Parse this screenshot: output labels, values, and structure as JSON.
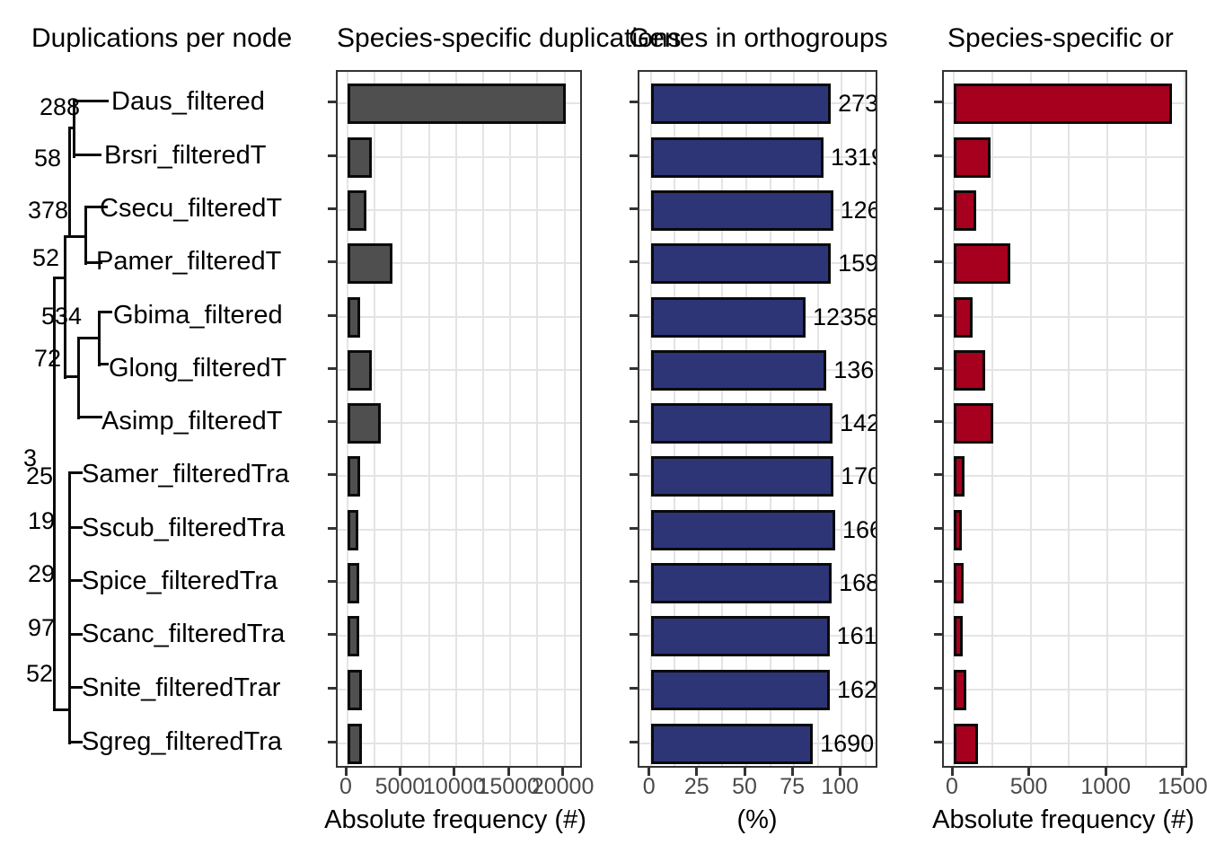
{
  "titles": [
    {
      "text": "Duplications per node"
    },
    {
      "text": "Species-specific duplications"
    },
    {
      "text": "Genes in orthogroups"
    },
    {
      "text": "Species-specific or"
    }
  ],
  "tree": {
    "tips": [
      {
        "label": "Daus_filtered"
      },
      {
        "label": "Brsri_filteredT"
      },
      {
        "label": "Csecu_filteredT"
      },
      {
        "label": "Pamer_filteredT"
      },
      {
        "label": "Gbima_filtered"
      },
      {
        "label": "Glong_filteredT"
      },
      {
        "label": "Asimp_filteredT"
      },
      {
        "label": "Samer_filteredTra"
      },
      {
        "label": "Sscub_filteredTra"
      },
      {
        "label": "Spice_filteredTra"
      },
      {
        "label": "Scanc_filteredTra"
      },
      {
        "label": "Snite_filteredTrar"
      },
      {
        "label": "Sgreg_filteredTra"
      }
    ],
    "node_labels": [
      "288",
      "58",
      "378",
      "52",
      "534",
      "72",
      "3",
      "25",
      "19",
      "29",
      "97",
      "52"
    ]
  },
  "chart_data": [
    {
      "type": "bar",
      "orientation": "horizontal",
      "title": "Species-specific duplications",
      "categories": [
        "Daus_filtered",
        "Brsri_filteredT",
        "Csecu_filteredT",
        "Pamer_filteredT",
        "Gbima_filtered",
        "Glong_filteredT",
        "Asimp_filteredT",
        "Samer_filteredTra",
        "Sscub_filteredTra",
        "Spice_filteredTra",
        "Scanc_filteredTra",
        "Snite_filteredTrar",
        "Sgreg_filteredTra"
      ],
      "values": [
        20100,
        2200,
        1700,
        4100,
        1200,
        2200,
        3100,
        1200,
        1000,
        1100,
        1100,
        1300,
        1300
      ],
      "xlabel": "Absolute frequency (#)",
      "xticks": [
        "0",
        "5000",
        "10000",
        "15000",
        "20000"
      ],
      "xlim": [
        0,
        22000
      ],
      "grid": "on",
      "bar_color": "#4f4f4f"
    },
    {
      "type": "bar",
      "orientation": "horizontal",
      "title": "Genes in orthogroups",
      "categories": [
        "Daus_filtered",
        "Brsri_filteredT",
        "Csecu_filteredT",
        "Pamer_filteredT",
        "Gbima_filtered",
        "Glong_filteredT",
        "Asimp_filteredT",
        "Samer_filteredTra",
        "Sscub_filteredTra",
        "Spice_filteredTra",
        "Scanc_filteredTra",
        "Snite_filteredTrar",
        "Sgreg_filteredTra"
      ],
      "values": [
        94.3,
        90.5,
        95.5,
        94.3,
        81.1,
        92.0,
        95.2,
        95.7,
        96.6,
        94.8,
        93.6,
        93.8,
        84.9
      ],
      "bar_labels": [
        "273",
        "1319",
        "126",
        "159",
        "12358",
        "136",
        "142",
        "170",
        "166",
        "168",
        "161",
        "162",
        "1690"
      ],
      "xlabel": "(%)",
      "xticks": [
        "0",
        "25",
        "50",
        "75",
        "100"
      ],
      "xlim": [
        0,
        115
      ],
      "grid": "on",
      "bar_color": "#2d3577"
    },
    {
      "type": "bar",
      "orientation": "horizontal",
      "title": "Species-specific or",
      "categories": [
        "Daus_filtered",
        "Brsri_filteredT",
        "Csecu_filteredT",
        "Pamer_filteredT",
        "Gbima_filtered",
        "Glong_filteredT",
        "Asimp_filteredT",
        "Samer_filteredTra",
        "Sscub_filteredTra",
        "Spice_filteredTra",
        "Scanc_filteredTra",
        "Snite_filteredTrar",
        "Sgreg_filteredTra"
      ],
      "values": [
        1420,
        240,
        146,
        368,
        121,
        204,
        257,
        68,
        53,
        63,
        58,
        82,
        156
      ],
      "xlabel": "Absolute frequency (#)",
      "xticks": [
        "0",
        "500",
        "1000",
        "1500"
      ],
      "xlim": [
        0,
        1590
      ],
      "grid": "on",
      "bar_color": "#a6001e"
    }
  ]
}
